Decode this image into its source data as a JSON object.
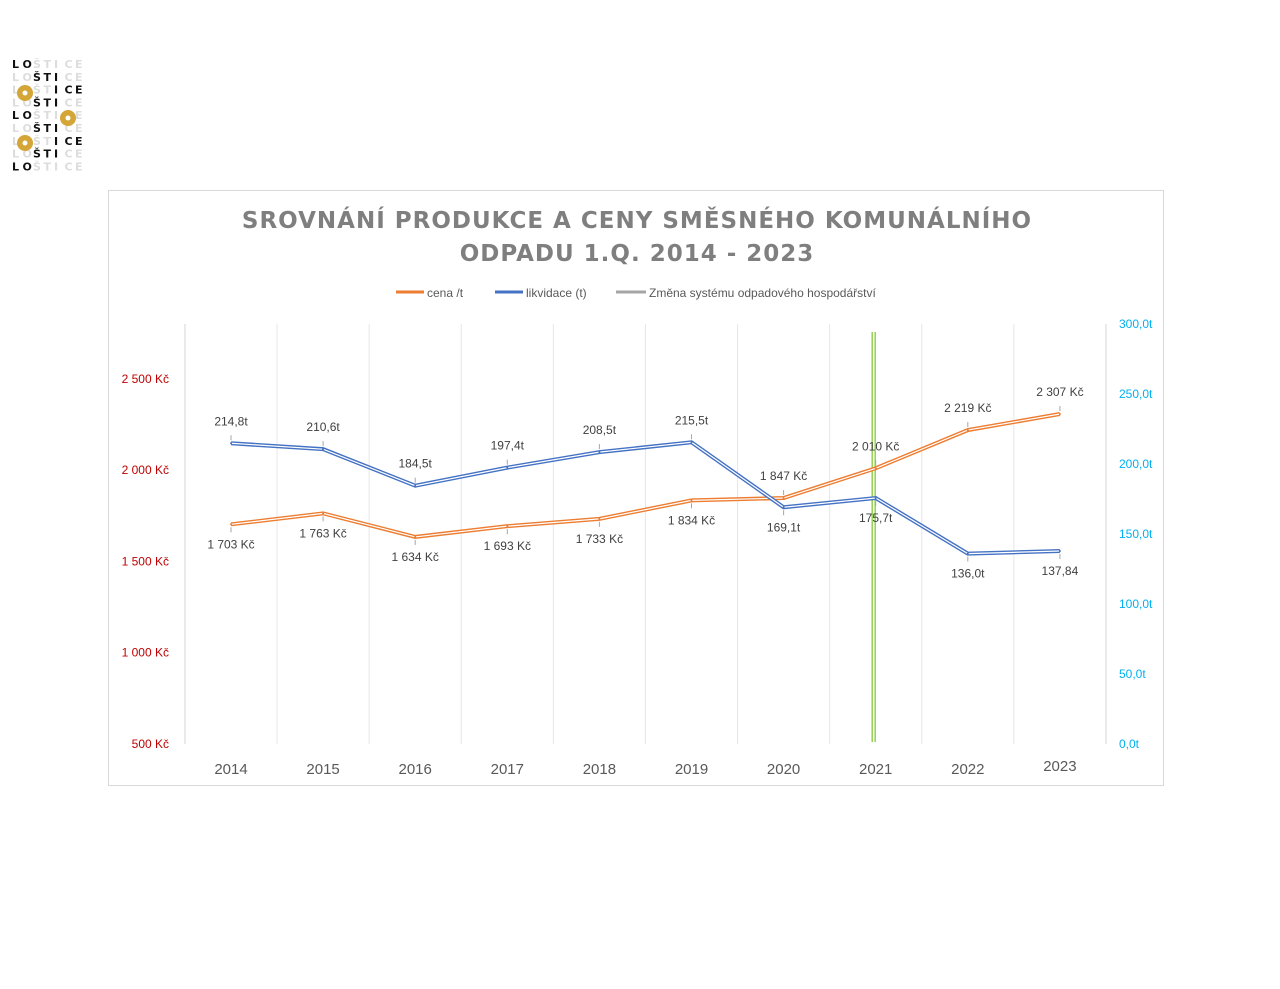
{
  "logo": {
    "text": "LOŠTICE"
  },
  "chart_data": {
    "type": "line",
    "title": "SROVNÁNÍ PRODUKCE A CENY SMĚSNÉHO KOMUNÁLNÍHO ODPADU  1.Q. 2014 - 2023",
    "title_lines": [
      "SROVNÁNÍ PRODUKCE A CENY SMĚSNÉHO KOMUNÁLNÍHO",
      "ODPADU  1.Q. 2014 - 2023"
    ],
    "categories": [
      "2014",
      "2015",
      "2016",
      "2017",
      "2018",
      "2019",
      "2020",
      "2021",
      "2022",
      "2023"
    ],
    "series": [
      {
        "name": "cena /t",
        "axis": "left",
        "color": "#ed7d31",
        "values": [
          1703,
          1763,
          1634,
          1693,
          1733,
          1834,
          1847,
          2010,
          2219,
          2307
        ],
        "labels": [
          "1 703 Kč",
          "1 763 Kč",
          "1 634 Kč",
          "1 693 Kč",
          "1 733 Kč",
          "1 834 Kč",
          "1 847 Kč",
          "2 010 Kč",
          "2 219 Kč",
          "2 307 Kč"
        ]
      },
      {
        "name": "likvidace (t)",
        "axis": "right",
        "color": "#4472c4",
        "values": [
          214.8,
          210.6,
          184.5,
          197.4,
          208.5,
          215.5,
          169.1,
          175.7,
          136.0,
          137.84
        ],
        "labels": [
          "214,8t",
          "210,6t",
          "184,5t",
          "197,4t",
          "208,5t",
          "215,5t",
          "169,1t",
          "175,7t",
          "136,0t",
          "137,84"
        ]
      },
      {
        "name": "Změna systému odpadového hospodářství",
        "color": "#a5a5a5",
        "marker_category": "2021",
        "marker_color": "#92d050"
      }
    ],
    "left_axis": {
      "ylim": [
        500,
        2800
      ],
      "ticks": [
        500,
        1000,
        1500,
        2000,
        2500
      ],
      "tick_labels": [
        "500 Kč",
        "1 000 Kč",
        "1 500 Kč",
        "2 000 Kč",
        "2 500 Kč"
      ],
      "color": "#ff0000"
    },
    "right_axis": {
      "ylim": [
        0,
        300
      ],
      "ticks": [
        0,
        50,
        100,
        150,
        200,
        250,
        300
      ],
      "tick_labels": [
        "0,0t",
        "50,0t",
        "100,0t",
        "150,0t",
        "200,0t",
        "250,0t",
        "300,0t"
      ],
      "color": "#00b0f0"
    },
    "legend_position": "top",
    "grid": "vertical"
  }
}
